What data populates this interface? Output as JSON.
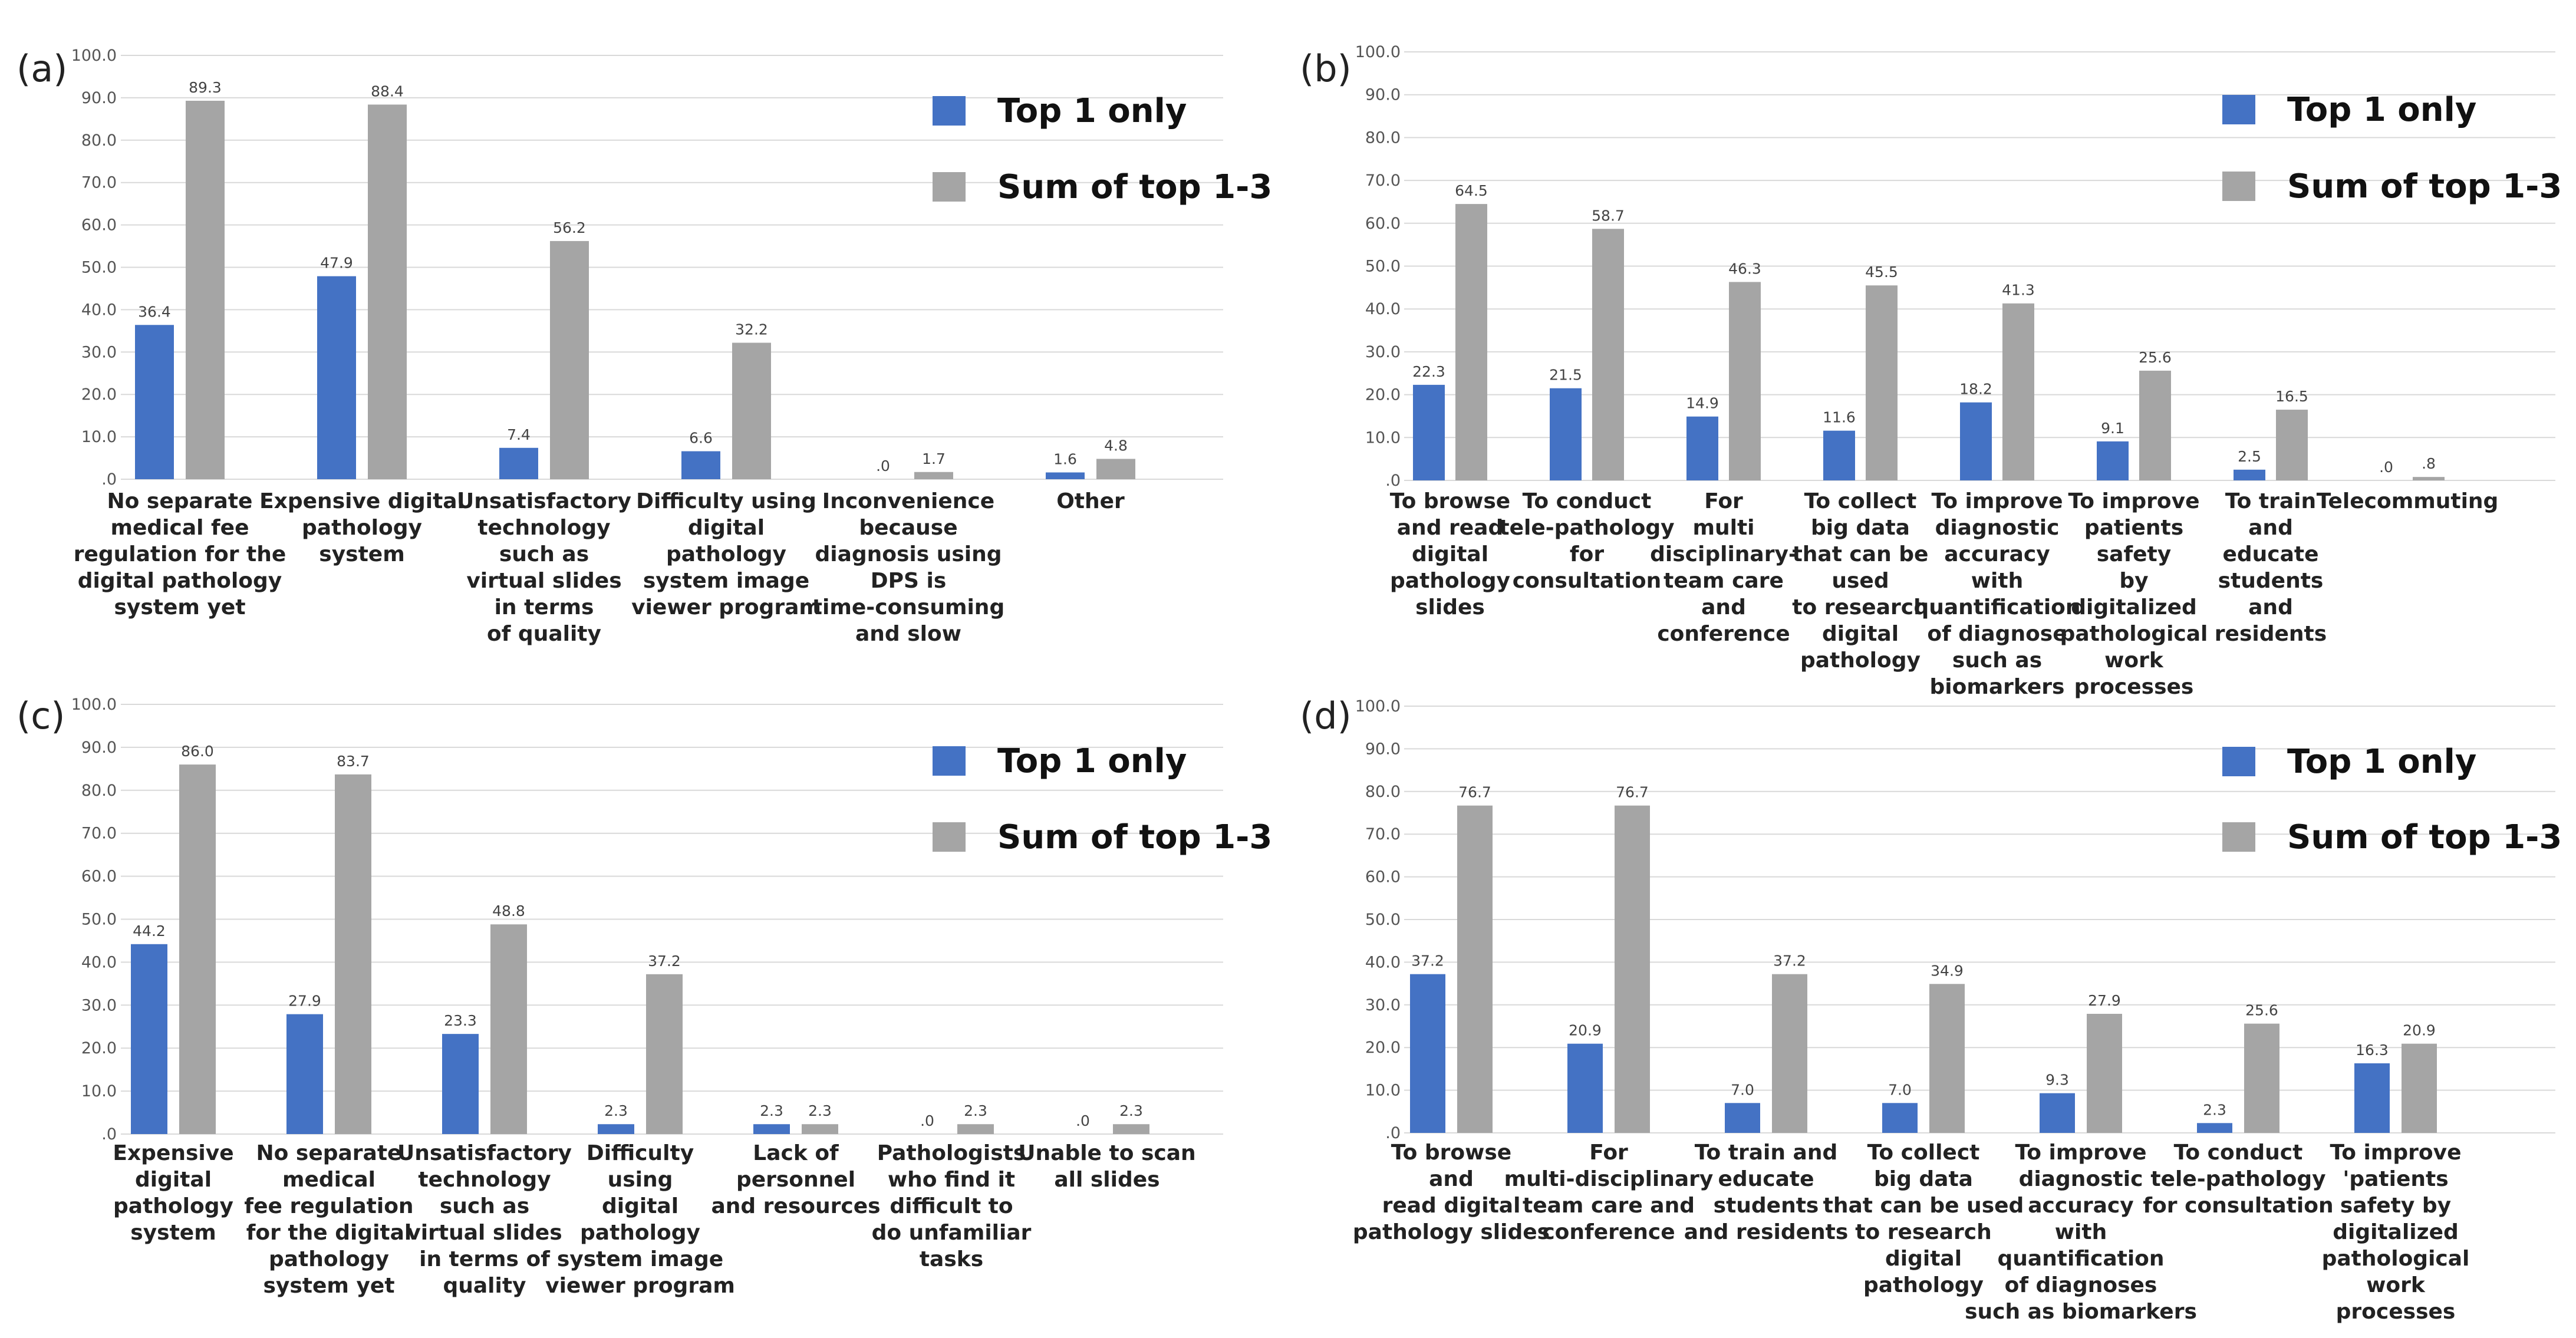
{
  "colors": {
    "top1": "#4472C4",
    "sum": "#A5A5A5",
    "grid": "#D9D9D9"
  },
  "chart_data": [
    {
      "panel": "(a)",
      "type": "bar",
      "ylim": [
        0,
        100
      ],
      "yticks": [
        "100.0",
        "90.0",
        "80.0",
        "70.0",
        "60.0",
        "50.0",
        "40.0",
        "30.0",
        "20.0",
        "10.0",
        ".0"
      ],
      "legend": [
        "Top 1 only",
        "Sum of top 1-3"
      ],
      "categories": [
        [
          "No separate",
          "medical fee",
          "regulation for the",
          "digital pathology",
          "system yet"
        ],
        [
          "Expensive digital",
          "pathology",
          "system"
        ],
        [
          "Unsatisfactory",
          "technology",
          "such as",
          "virtual slides",
          "in terms",
          "of quality"
        ],
        [
          "Difficulty using",
          "digital",
          "pathology",
          "system image",
          "viewer program"
        ],
        [
          "Inconvenience",
          "because",
          "diagnosis using",
          "DPS is",
          "time-consuming",
          "and slow"
        ],
        [
          "Other"
        ]
      ],
      "series": [
        {
          "name": "Top 1 only",
          "values": [
            36.4,
            47.9,
            7.4,
            6.6,
            0,
            1.6
          ],
          "labels": [
            "36.4",
            "47.9",
            "7.4",
            "6.6",
            ".0",
            "1.6"
          ]
        },
        {
          "name": "Sum of top 1-3",
          "values": [
            89.3,
            88.4,
            56.2,
            32.2,
            1.7,
            4.8
          ],
          "labels": [
            "89.3",
            "88.4",
            "56.2",
            "32.2",
            "1.7",
            "4.8"
          ]
        }
      ]
    },
    {
      "panel": "(b)",
      "type": "bar",
      "ylim": [
        0,
        100
      ],
      "yticks": [
        "100.0",
        "90.0",
        "80.0",
        "70.0",
        "60.0",
        "50.0",
        "40.0",
        "30.0",
        "20.0",
        "10.0",
        ".0"
      ],
      "legend": [
        "Top 1 only",
        "Sum of top 1-3"
      ],
      "categories": [
        [
          "To browse",
          "and read",
          "digital",
          "pathology",
          "slides"
        ],
        [
          "To conduct",
          "tele-pathology",
          "for",
          "consultation"
        ],
        [
          "For",
          "multi",
          "disciplinary-",
          "team care",
          "and",
          "conference"
        ],
        [
          "To collect",
          "big data",
          "that can be",
          "used",
          "to research",
          "digital",
          "pathology"
        ],
        [
          "To improve",
          "diagnostic",
          "accuracy",
          "with",
          "quantification",
          "of diagnose",
          "such as",
          "biomarkers"
        ],
        [
          "To improve",
          "patients",
          "safety",
          "by",
          "digitalized",
          "pathological",
          "work",
          "processes"
        ],
        [
          "To train",
          "and",
          "educate",
          "students",
          "and",
          "residents"
        ],
        [
          "Telecommuting"
        ]
      ],
      "series": [
        {
          "name": "Top 1 only",
          "values": [
            22.3,
            21.5,
            14.9,
            11.6,
            18.2,
            9.1,
            2.5,
            0
          ],
          "labels": [
            "22.3",
            "21.5",
            "14.9",
            "11.6",
            "18.2",
            "9.1",
            "2.5",
            ".0"
          ]
        },
        {
          "name": "Sum of top 1-3",
          "values": [
            64.5,
            58.7,
            46.3,
            45.5,
            41.3,
            25.6,
            16.5,
            0.8
          ],
          "labels": [
            "64.5",
            "58.7",
            "46.3",
            "45.5",
            "41.3",
            "25.6",
            "16.5",
            ".8"
          ]
        }
      ]
    },
    {
      "panel": "(c)",
      "type": "bar",
      "ylim": [
        0,
        100
      ],
      "yticks": [
        "100.0",
        "90.0",
        "80.0",
        "70.0",
        "60.0",
        "50.0",
        "40.0",
        "30.0",
        "20.0",
        "10.0",
        ".0"
      ],
      "legend": [
        "Top 1 only",
        "Sum of top 1-3"
      ],
      "categories": [
        [
          "Expensive",
          "digital",
          "pathology",
          "system"
        ],
        [
          "No separate",
          "medical",
          "fee regulation",
          "for the digital",
          "pathology",
          "system yet"
        ],
        [
          "Unsatisfactory",
          "technology",
          "such as",
          "virtual slides",
          "in terms of",
          "quality"
        ],
        [
          "Difficulty",
          "using",
          "digital",
          "pathology",
          "system image",
          "viewer program"
        ],
        [
          "Lack of",
          "personnel",
          "and resources"
        ],
        [
          "Pathologists",
          "who find it",
          "difficult to",
          "do unfamiliar",
          "tasks"
        ],
        [
          "Unable to scan",
          "all slides"
        ]
      ],
      "series": [
        {
          "name": "Top 1 only",
          "values": [
            44.2,
            27.9,
            23.3,
            2.3,
            2.3,
            0,
            0
          ],
          "labels": [
            "44.2",
            "27.9",
            "23.3",
            "2.3",
            "2.3",
            ".0",
            ".0"
          ]
        },
        {
          "name": "Sum of top 1-3",
          "values": [
            86.0,
            83.7,
            48.8,
            37.2,
            2.3,
            2.3,
            2.3
          ],
          "labels": [
            "86.0",
            "83.7",
            "48.8",
            "37.2",
            "2.3",
            "2.3",
            "2.3"
          ]
        }
      ]
    },
    {
      "panel": "(d)",
      "type": "bar",
      "ylim": [
        0,
        100
      ],
      "yticks": [
        "100.0",
        "90.0",
        "80.0",
        "70.0",
        "60.0",
        "50.0",
        "40.0",
        "30.0",
        "20.0",
        "10.0",
        ".0"
      ],
      "legend": [
        "Top 1 only",
        "Sum of top 1-3"
      ],
      "categories": [
        [
          "To browse",
          "and",
          "read digital",
          "pathology slides"
        ],
        [
          "For",
          "multi-disciplinary",
          "team care and",
          "conference"
        ],
        [
          "To train and",
          "educate",
          "students",
          "and residents"
        ],
        [
          "To collect",
          "big data",
          "that can be used",
          "to research",
          "digital",
          "pathology"
        ],
        [
          "To improve",
          "diagnostic",
          "accuracy",
          "with",
          "quantification",
          "of diagnoses",
          "such as biomarkers"
        ],
        [
          "To conduct",
          "tele-pathology",
          "for consultation"
        ],
        [
          "To improve",
          "'patients",
          "safety by",
          "digitalized",
          "pathological",
          "work",
          "processes"
        ]
      ],
      "series": [
        {
          "name": "Top 1 only",
          "values": [
            37.2,
            20.9,
            7.0,
            7.0,
            9.3,
            2.3,
            16.3
          ],
          "labels": [
            "37.2",
            "20.9",
            "7.0",
            "7.0",
            "9.3",
            "2.3",
            "16.3"
          ]
        },
        {
          "name": "Sum of top 1-3",
          "values": [
            76.7,
            76.7,
            37.2,
            34.9,
            27.9,
            25.6,
            20.9
          ],
          "labels": [
            "76.7",
            "76.7",
            "37.2",
            "34.9",
            "27.9",
            "25.6",
            "20.9"
          ]
        }
      ]
    }
  ]
}
